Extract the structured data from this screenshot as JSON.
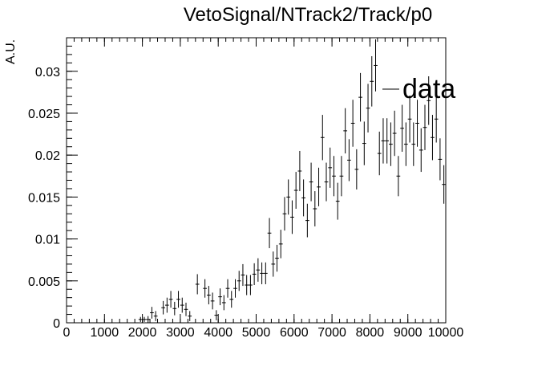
{
  "chart_data": {
    "type": "scatter",
    "title": "VetoSignal/NTrack2/Track/p0",
    "xlabel": "",
    "ylabel": "A.U.",
    "xlim": [
      0,
      10000
    ],
    "ylim": [
      0,
      0.034
    ],
    "grid": false,
    "legend_position": "top-right",
    "x_ticks": [
      0,
      1000,
      2000,
      3000,
      4000,
      5000,
      6000,
      7000,
      8000,
      9000,
      10000
    ],
    "x_tick_labels": [
      "0",
      "1000",
      "2000",
      "3000",
      "4000",
      "5000",
      "6000",
      "7000",
      "8000",
      "9000",
      "10000"
    ],
    "y_ticks": [
      0,
      0.005,
      0.01,
      0.015,
      0.02,
      0.025,
      0.03
    ],
    "y_tick_labels": [
      "0",
      "0.005",
      "0.01",
      "0.015",
      "0.02",
      "0.025",
      "0.03"
    ],
    "series": [
      {
        "name": "data",
        "color": "#000000",
        "bin_width": 100,
        "x": [
          1950,
          2050,
          2150,
          2250,
          2350,
          2450,
          2550,
          2650,
          2750,
          2850,
          2950,
          3050,
          3150,
          3250,
          3350,
          3450,
          3550,
          3650,
          3750,
          3850,
          3950,
          4050,
          4150,
          4250,
          4350,
          4450,
          4550,
          4650,
          4750,
          4850,
          4950,
          5050,
          5150,
          5250,
          5350,
          5450,
          5550,
          5650,
          5750,
          5850,
          5950,
          6050,
          6150,
          6250,
          6350,
          6450,
          6550,
          6650,
          6750,
          6850,
          6950,
          7050,
          7150,
          7250,
          7350,
          7450,
          7550,
          7650,
          7750,
          7850,
          7950,
          8050,
          8150,
          8250,
          8350,
          8450,
          8550,
          8650,
          8750,
          8850,
          8950,
          9050,
          9150,
          9250,
          9350,
          9450,
          9550,
          9650,
          9750,
          9850,
          9950
        ],
        "y": [
          0.0004,
          0.0004,
          0.0004,
          0.0012,
          0.0008,
          0.0,
          0.0018,
          0.0021,
          0.0028,
          0.0017,
          0.0028,
          0.0021,
          0.0016,
          0.0008,
          0.0,
          0.0046,
          0.0,
          0.0041,
          0.0033,
          0.0026,
          0.0009,
          0.0031,
          0.0024,
          0.0041,
          0.0028,
          0.0041,
          0.005,
          0.0057,
          0.0045,
          0.0045,
          0.0058,
          0.0063,
          0.0059,
          0.0059,
          0.0107,
          0.007,
          0.0077,
          0.0094,
          0.013,
          0.015,
          0.0126,
          0.0158,
          0.0181,
          0.0149,
          0.0122,
          0.0168,
          0.0136,
          0.0162,
          0.0221,
          0.0168,
          0.0185,
          0.0175,
          0.0145,
          0.0175,
          0.0229,
          0.0194,
          0.0238,
          0.0183,
          0.0269,
          0.0214,
          0.0256,
          0.0288,
          0.0307,
          0.0202,
          0.0217,
          0.0217,
          0.0213,
          0.0226,
          0.0175,
          0.0232,
          0.0213,
          0.0243,
          0.0213,
          0.0238,
          0.0206,
          0.0233,
          0.0265,
          0.0221,
          0.0243,
          0.0195,
          0.0165
        ],
        "err": [
          0.0003,
          0.0003,
          0.0004,
          0.0007,
          0.0006,
          0.0,
          0.0008,
          0.0009,
          0.001,
          0.0008,
          0.001,
          0.0009,
          0.0008,
          0.0006,
          0.0,
          0.0012,
          0.0,
          0.0011,
          0.0011,
          0.001,
          0.0006,
          0.001,
          0.0009,
          0.0011,
          0.001,
          0.0011,
          0.0012,
          0.0013,
          0.0012,
          0.0012,
          0.0013,
          0.0014,
          0.0013,
          0.0013,
          0.0018,
          0.0015,
          0.0016,
          0.0017,
          0.002,
          0.0021,
          0.002,
          0.0022,
          0.0024,
          0.0022,
          0.002,
          0.0023,
          0.0021,
          0.0023,
          0.0027,
          0.0023,
          0.0024,
          0.0024,
          0.0022,
          0.0024,
          0.0027,
          0.0025,
          0.0028,
          0.0024,
          0.0029,
          0.0026,
          0.0029,
          0.003,
          0.0031,
          0.0026,
          0.0027,
          0.0027,
          0.0026,
          0.0027,
          0.0024,
          0.0028,
          0.0026,
          0.0028,
          0.0026,
          0.0028,
          0.0026,
          0.0027,
          0.0029,
          0.0027,
          0.0028,
          0.0025,
          0.0023
        ]
      }
    ]
  }
}
